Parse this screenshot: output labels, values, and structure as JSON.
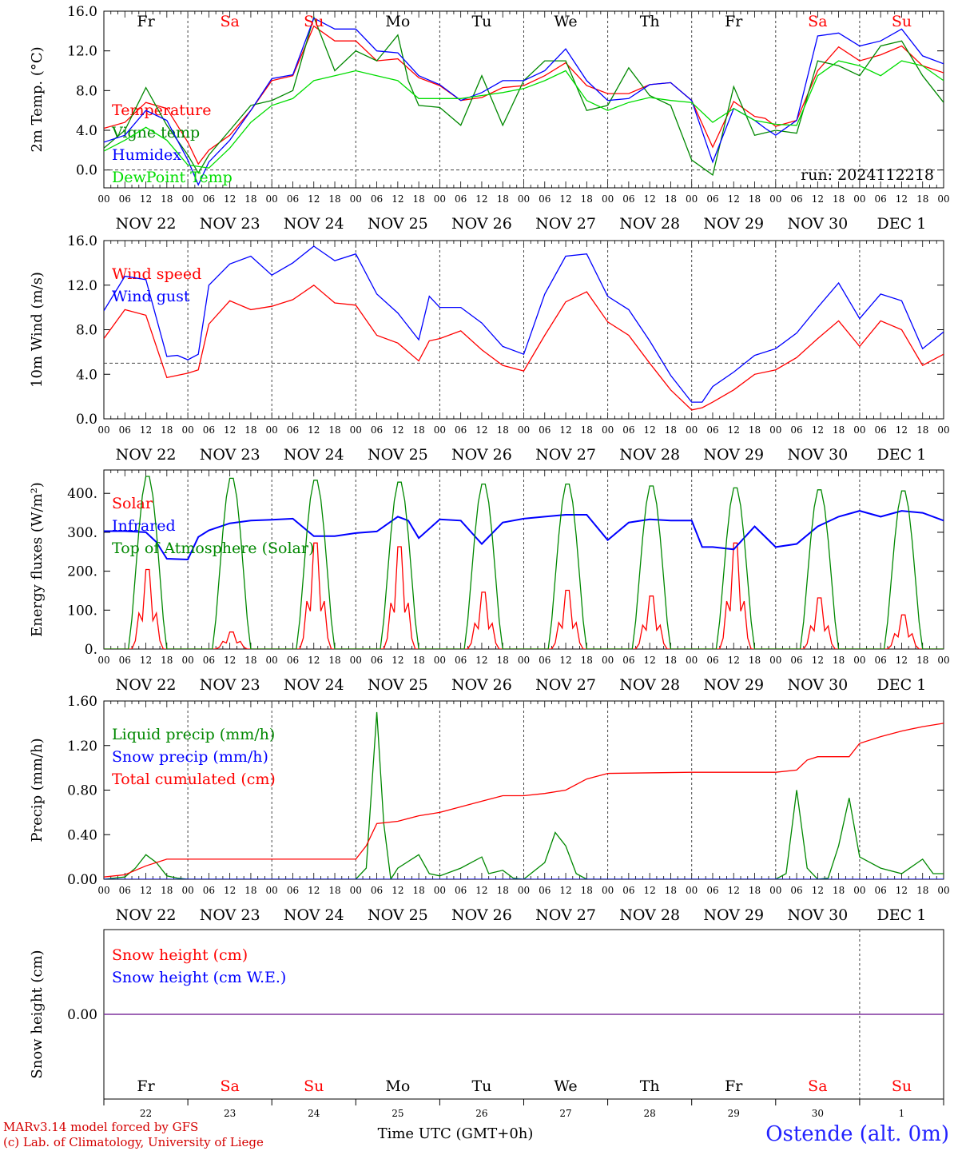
{
  "footer": {
    "credit_line1": "MARv3.14 model forced by GFS",
    "credit_line2": "(c) Lab. of Climatology, University of Liege",
    "time_axis_title": "Time UTC (GMT+0h)",
    "station": "Ostende (alt. 0m)"
  },
  "colors": {
    "temperature": "#ff0000",
    "vigne": "#008800",
    "humidex": "#0000ff",
    "dewpoint": "#00dd00",
    "weekend": "#ff0000",
    "weekday": "#000000",
    "snow_line": "#7a2a9a"
  },
  "run_label": "run: 2024112218",
  "day_of_week": [
    {
      "label": "Fr",
      "weekend": false
    },
    {
      "label": "Sa",
      "weekend": true
    },
    {
      "label": "Su",
      "weekend": true
    },
    {
      "label": "Mo",
      "weekend": false
    },
    {
      "label": "Tu",
      "weekend": false
    },
    {
      "label": "We",
      "weekend": false
    },
    {
      "label": "Th",
      "weekend": false
    },
    {
      "label": "Fr",
      "weekend": false
    },
    {
      "label": "Sa",
      "weekend": true
    },
    {
      "label": "Su",
      "weekend": true
    }
  ],
  "date_labels": [
    "NOV 22",
    "NOV 23",
    "NOV 24",
    "NOV 25",
    "NOV 26",
    "NOV 27",
    "NOV 28",
    "NOV 29",
    "NOV 30",
    "DEC  1"
  ],
  "day_numbers": [
    "22",
    "23",
    "24",
    "25",
    "26",
    "27",
    "28",
    "29",
    "30",
    "1"
  ],
  "hour_labels": [
    "00",
    "06",
    "12",
    "18"
  ],
  "chart_data": [
    {
      "type": "line",
      "ylabel": "2m Temp. (°C)",
      "ylim": [
        -1.8,
        16
      ],
      "yticks": [
        0,
        4,
        8,
        12,
        16
      ],
      "ytick_labels": [
        "0.0",
        "4.0",
        "8.0",
        "12.0",
        "16.0"
      ],
      "reference_line": 0,
      "x_unit": "hours since 2024-11-22 00 UTC",
      "series": [
        {
          "name": "Temperature",
          "color": "#ff0000",
          "x": [
            0,
            6,
            12,
            18,
            24,
            27,
            30,
            36,
            42,
            48,
            54,
            60,
            66,
            72,
            78,
            84,
            90,
            96,
            102,
            108,
            114,
            120,
            126,
            132,
            138,
            144,
            150,
            156,
            162,
            168,
            174,
            180,
            186,
            189,
            192,
            198,
            204,
            210,
            216,
            222,
            228,
            234,
            240
          ],
          "values": [
            4.2,
            4.8,
            6.8,
            6.2,
            2.8,
            0.6,
            2.0,
            3.5,
            6.0,
            9.0,
            9.5,
            14.5,
            13.0,
            13.0,
            11.0,
            11.2,
            9.3,
            8.5,
            7.0,
            7.3,
            8.3,
            8.5,
            9.5,
            10.8,
            8.5,
            7.7,
            7.7,
            8.6,
            8.8,
            7.0,
            2.3,
            6.9,
            5.4,
            5.2,
            4.4,
            5.0,
            10.0,
            12.4,
            11.0,
            11.6,
            12.5,
            10.5,
            9.8
          ]
        },
        {
          "name": "Vigne temp",
          "color": "#008800",
          "x": [
            0,
            6,
            12,
            18,
            24,
            27,
            30,
            36,
            42,
            48,
            54,
            60,
            66,
            72,
            78,
            84,
            87,
            90,
            96,
            102,
            108,
            114,
            120,
            126,
            132,
            138,
            144,
            150,
            156,
            162,
            168,
            174,
            180,
            186,
            192,
            198,
            204,
            210,
            216,
            222,
            228,
            234,
            240
          ],
          "values": [
            2.2,
            4.0,
            8.3,
            4.5,
            1.5,
            -0.3,
            1.5,
            4.0,
            6.5,
            7.0,
            8.0,
            15.4,
            10.0,
            12.0,
            11.0,
            13.6,
            9.0,
            6.5,
            6.3,
            4.5,
            9.5,
            4.5,
            9.0,
            11.0,
            11.0,
            6.0,
            6.5,
            10.3,
            7.5,
            6.5,
            1.0,
            -0.5,
            8.4,
            3.5,
            4.0,
            3.7,
            11.0,
            10.5,
            9.5,
            12.5,
            13.0,
            9.5,
            6.8
          ]
        },
        {
          "name": "Humidex",
          "color": "#0000ff",
          "x": [
            0,
            6,
            12,
            18,
            24,
            27,
            30,
            36,
            42,
            48,
            54,
            60,
            66,
            72,
            78,
            84,
            90,
            96,
            102,
            108,
            114,
            120,
            126,
            132,
            138,
            144,
            150,
            156,
            162,
            168,
            174,
            180,
            186,
            189,
            192,
            198,
            204,
            210,
            216,
            222,
            228,
            234,
            240
          ],
          "values": [
            2.8,
            3.5,
            6.0,
            5.0,
            1.0,
            -1.5,
            0.8,
            3.0,
            6.0,
            9.2,
            9.6,
            15.3,
            14.2,
            14.2,
            12.0,
            11.8,
            9.5,
            8.6,
            7.0,
            7.8,
            9.0,
            9.0,
            10.0,
            12.2,
            9.0,
            7.0,
            7.2,
            8.6,
            8.8,
            7.0,
            0.8,
            6.2,
            5.0,
            4.2,
            3.5,
            5.0,
            13.5,
            13.8,
            12.5,
            13.0,
            14.2,
            11.5,
            10.7
          ]
        },
        {
          "name": "DewPoint Temp",
          "color": "#00dd00",
          "x": [
            0,
            6,
            12,
            18,
            24,
            30,
            36,
            42,
            48,
            54,
            60,
            66,
            72,
            78,
            84,
            90,
            96,
            102,
            108,
            114,
            120,
            126,
            132,
            138,
            144,
            150,
            156,
            162,
            168,
            174,
            180,
            186,
            192,
            198,
            204,
            210,
            216,
            222,
            228,
            234,
            240
          ],
          "values": [
            1.9,
            3.0,
            4.3,
            3.0,
            0.5,
            0.2,
            2.2,
            4.8,
            6.5,
            7.2,
            9.0,
            9.5,
            10.0,
            9.5,
            9.0,
            7.2,
            7.2,
            7.2,
            7.5,
            7.8,
            8.2,
            9.0,
            10.0,
            7.0,
            6.0,
            6.8,
            7.3,
            7.0,
            6.8,
            4.8,
            6.2,
            5.0,
            4.6,
            4.5,
            9.5,
            11.0,
            10.5,
            9.5,
            11.0,
            10.5,
            9.0
          ]
        }
      ]
    },
    {
      "type": "line",
      "ylabel": "10m Wind (m/s)",
      "ylim": [
        0,
        16
      ],
      "yticks": [
        0,
        4,
        8,
        12,
        16
      ],
      "ytick_labels": [
        "0.0",
        "4.0",
        "8.0",
        "12.0",
        "16.0"
      ],
      "reference_line": 5,
      "series": [
        {
          "name": "Wind speed",
          "color": "#ff0000",
          "x": [
            0,
            6,
            12,
            18,
            24,
            27,
            30,
            36,
            42,
            48,
            54,
            60,
            66,
            72,
            78,
            84,
            90,
            93,
            96,
            102,
            108,
            114,
            120,
            126,
            132,
            138,
            144,
            150,
            156,
            162,
            168,
            171,
            174,
            180,
            186,
            192,
            198,
            204,
            210,
            216,
            222,
            228,
            234,
            240
          ],
          "values": [
            7.2,
            9.8,
            9.3,
            3.7,
            4.1,
            4.4,
            8.5,
            10.6,
            9.8,
            10.1,
            10.7,
            12.0,
            10.4,
            10.2,
            7.5,
            6.8,
            5.2,
            7.0,
            7.2,
            7.9,
            6.2,
            4.8,
            4.3,
            7.5,
            10.5,
            11.4,
            8.7,
            7.5,
            5.0,
            2.6,
            0.8,
            1.0,
            1.5,
            2.6,
            4.0,
            4.4,
            5.5,
            7.2,
            8.8,
            6.5,
            8.8,
            8.0,
            4.8,
            5.8
          ]
        },
        {
          "name": "Wind gust",
          "color": "#0000ff",
          "x": [
            0,
            6,
            12,
            18,
            21,
            24,
            27,
            30,
            36,
            42,
            48,
            54,
            60,
            66,
            72,
            78,
            84,
            90,
            93,
            96,
            102,
            108,
            114,
            120,
            126,
            132,
            138,
            144,
            150,
            156,
            162,
            168,
            171,
            174,
            180,
            186,
            192,
            198,
            204,
            210,
            216,
            222,
            228,
            234,
            240
          ],
          "values": [
            9.7,
            12.8,
            12.5,
            5.6,
            5.7,
            5.3,
            5.8,
            12.0,
            13.9,
            14.6,
            12.9,
            14.0,
            15.5,
            14.2,
            14.8,
            11.2,
            9.5,
            7.1,
            11.0,
            10.0,
            10.0,
            8.6,
            6.5,
            5.8,
            11.2,
            14.6,
            14.8,
            11.0,
            9.8,
            7.0,
            3.9,
            1.5,
            1.5,
            2.9,
            4.2,
            5.7,
            6.3,
            7.7,
            10.0,
            12.2,
            9.0,
            11.2,
            10.6,
            6.3,
            7.8
          ]
        }
      ]
    },
    {
      "type": "line",
      "ylabel": "Energy fluxes (W/m²)",
      "ylim": [
        0,
        460
      ],
      "yticks": [
        0,
        100,
        200,
        300,
        400
      ],
      "ytick_labels": [
        "0.",
        "100.",
        "200.",
        "300.",
        "400."
      ],
      "series": [
        {
          "name": "Solar",
          "color": "#ff0000",
          "diurnal_peaks": [
            210,
            45,
            280,
            270,
            150,
            155,
            140,
            280,
            135,
            90
          ]
        },
        {
          "name": "Infrared",
          "color": "#0000ff",
          "x": [
            0,
            6,
            12,
            15,
            18,
            24,
            27,
            30,
            36,
            42,
            48,
            54,
            60,
            66,
            72,
            78,
            84,
            87,
            90,
            96,
            102,
            108,
            114,
            120,
            126,
            132,
            138,
            144,
            150,
            156,
            162,
            168,
            171,
            174,
            180,
            186,
            192,
            198,
            204,
            210,
            216,
            222,
            228,
            234,
            240
          ],
          "values": [
            303,
            303,
            300,
            275,
            232,
            230,
            288,
            305,
            323,
            330,
            332,
            335,
            290,
            290,
            298,
            302,
            340,
            330,
            285,
            333,
            330,
            270,
            325,
            335,
            340,
            345,
            345,
            280,
            325,
            333,
            330,
            330,
            262,
            262,
            256,
            315,
            262,
            270,
            315,
            340,
            355,
            340,
            355,
            350,
            330
          ]
        },
        {
          "name": "Top of Atmosphere (Solar)",
          "color": "#008800",
          "diurnal_peaks": [
            450,
            445,
            440,
            435,
            430,
            430,
            425,
            420,
            415,
            412
          ]
        }
      ]
    },
    {
      "type": "line",
      "ylabel": "Precip (mm/h)",
      "ylim": [
        0,
        1.6
      ],
      "yticks": [
        0,
        0.4,
        0.8,
        1.2,
        1.6
      ],
      "ytick_labels": [
        "0.00",
        "0.40",
        "0.80",
        "1.20",
        "1.60"
      ],
      "series": [
        {
          "name": "Liquid precip (mm/h)",
          "color": "#008800",
          "x": [
            0,
            6,
            9,
            12,
            15,
            18,
            21,
            24,
            48,
            60,
            72,
            75,
            78,
            80,
            82,
            84,
            90,
            93,
            96,
            102,
            108,
            110,
            114,
            117,
            120,
            126,
            129,
            132,
            135,
            138,
            144,
            168,
            192,
            195,
            198,
            201,
            204,
            207,
            210,
            213,
            216,
            219,
            222,
            228,
            234,
            237,
            240
          ],
          "values": [
            0,
            0.02,
            0.1,
            0.22,
            0.15,
            0.03,
            0.01,
            0,
            0,
            0,
            0,
            0.1,
            1.5,
            0.5,
            0.0,
            0.1,
            0.22,
            0.05,
            0.03,
            0.1,
            0.2,
            0.05,
            0.08,
            0.01,
            0.0,
            0.15,
            0.42,
            0.3,
            0.05,
            0.0,
            0.0,
            0.0,
            0.0,
            0.05,
            0.8,
            0.1,
            0.0,
            0.01,
            0.3,
            0.73,
            0.2,
            0.15,
            0.1,
            0.05,
            0.18,
            0.05,
            0.05
          ]
        },
        {
          "name": "Snow precip (mm/h)",
          "color": "#0000ff",
          "x": [
            0,
            240
          ],
          "values": [
            0,
            0
          ]
        },
        {
          "name": "Total cumulated (cm)",
          "color": "#ff0000",
          "x": [
            0,
            6,
            12,
            18,
            24,
            36,
            72,
            75,
            78,
            84,
            90,
            96,
            102,
            108,
            114,
            120,
            126,
            132,
            138,
            144,
            168,
            192,
            198,
            201,
            204,
            210,
            213,
            216,
            222,
            228,
            234,
            240
          ],
          "values": [
            0.02,
            0.04,
            0.12,
            0.18,
            0.18,
            0.18,
            0.18,
            0.3,
            0.5,
            0.52,
            0.57,
            0.6,
            0.65,
            0.7,
            0.75,
            0.75,
            0.77,
            0.8,
            0.9,
            0.95,
            0.96,
            0.96,
            0.98,
            1.07,
            1.1,
            1.1,
            1.1,
            1.22,
            1.28,
            1.33,
            1.37,
            1.4
          ]
        }
      ]
    },
    {
      "type": "line",
      "ylabel": "Snow height (cm)",
      "ylim": [
        -1,
        1
      ],
      "yticks": [
        0
      ],
      "ytick_labels": [
        "0.00"
      ],
      "series": [
        {
          "name": "Snow height (cm)",
          "color": "#ff0000",
          "x": [
            0,
            240
          ],
          "values": [
            0,
            0
          ]
        },
        {
          "name": "Snow height (cm W.E.)",
          "color": "#0000ff",
          "x": [
            0,
            240
          ],
          "values": [
            0,
            0
          ]
        }
      ]
    }
  ]
}
